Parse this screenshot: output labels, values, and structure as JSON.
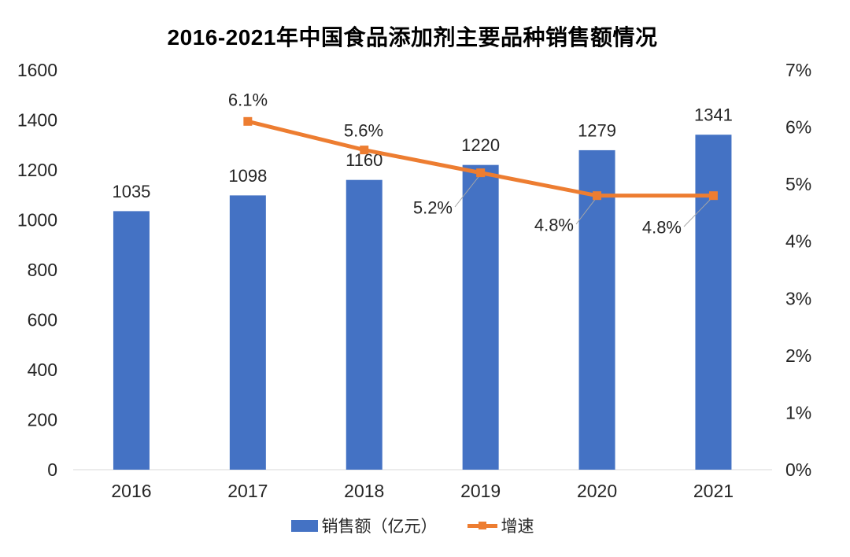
{
  "title": "2016-2021年中国食品添加剂主要品种销售额情况",
  "chart_data": {
    "type": "combo (bar + line)",
    "categories": [
      "2016",
      "2017",
      "2018",
      "2019",
      "2020",
      "2021"
    ],
    "series": [
      {
        "name": "销售额（亿元）",
        "type": "bar",
        "axis": "left",
        "color": "#4472C4",
        "values": [
          1035,
          1098,
          1160,
          1220,
          1279,
          1341
        ],
        "labels": [
          "1035",
          "1098",
          "1160",
          "1220",
          "1279",
          "1341"
        ]
      },
      {
        "name": "增速",
        "type": "line",
        "axis": "right",
        "color": "#ED7D31",
        "values": [
          null,
          6.1,
          5.6,
          5.2,
          4.8,
          4.8
        ],
        "labels": [
          null,
          "6.1%",
          "5.6%",
          "5.2%",
          "4.8%",
          "4.8%"
        ]
      }
    ],
    "left_axis": {
      "min": 0,
      "max": 1600,
      "step": 200,
      "ticks": [
        "0",
        "200",
        "400",
        "600",
        "800",
        "1000",
        "1200",
        "1400",
        "1600"
      ]
    },
    "right_axis": {
      "min": 0,
      "max": 7,
      "step": 1,
      "ticks": [
        "0%",
        "1%",
        "2%",
        "3%",
        "4%",
        "5%",
        "6%",
        "7%"
      ]
    },
    "grid": false,
    "legend_position": "bottom"
  },
  "colors": {
    "bar": "#4472C4",
    "line": "#ED7D31",
    "text": "#262626",
    "axis_line": "#D9D9D9",
    "leader_line": "#A6A6A6",
    "background": "#FFFFFF"
  }
}
